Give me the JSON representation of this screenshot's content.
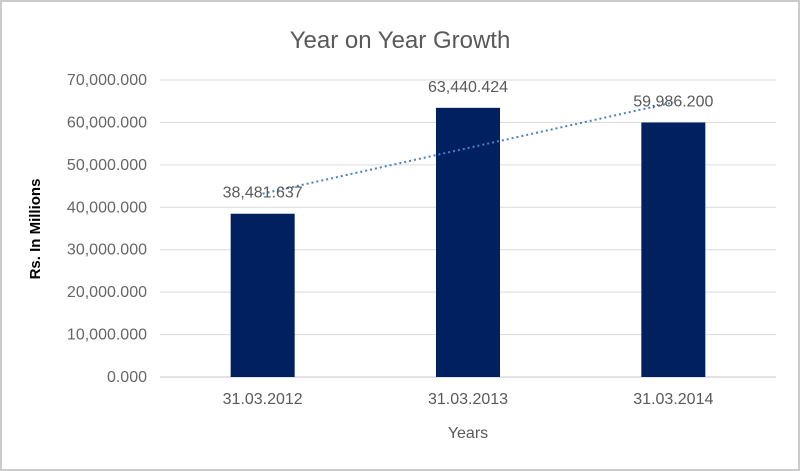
{
  "window": {
    "background": "#ffffff",
    "border_color": "#cbcbcb"
  },
  "chart_data": {
    "type": "bar",
    "title": "Year on Year Growth",
    "xlabel": "Years",
    "ylabel": "Rs. In Millions",
    "categories": [
      "31.03.2012",
      "31.03.2013",
      "31.03.2014"
    ],
    "values": [
      38481.637,
      63440.424,
      59986.2
    ],
    "data_labels": [
      "38,481.637",
      "63,440.424",
      "59,986.200"
    ],
    "y_tick_values": [
      0,
      10000,
      20000,
      30000,
      40000,
      50000,
      60000,
      70000
    ],
    "y_tick_labels": [
      "0.000",
      "10,000.000",
      "20,000.000",
      "30,000.000",
      "40,000.000",
      "50,000.000",
      "60,000.000",
      "70,000.000"
    ],
    "ylim": [
      0,
      70000
    ],
    "grid": true,
    "legend": false,
    "trendline": {
      "type": "linear",
      "style": "dotted"
    },
    "colors": {
      "bar_fill": "#002060",
      "trendline": "#4a80c4",
      "gridline": "#d9d9d9",
      "axis_line": "#c6c6c6",
      "title_text": "#595959",
      "tick_text": "#666666",
      "category_text": "#595959",
      "ylabel_text": "#000000"
    }
  }
}
